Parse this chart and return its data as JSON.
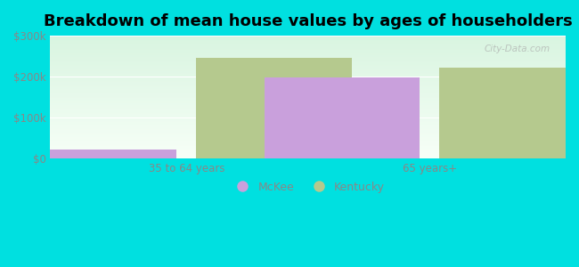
{
  "title": "Breakdown of mean house values by ages of householders",
  "categories": [
    "35 to 64 years",
    "65 years+"
  ],
  "series": {
    "McKee": [
      22000,
      198000
    ],
    "Kentucky": [
      245000,
      222000
    ]
  },
  "mckee_color": "#c9a0dc",
  "kentucky_color": "#b5c98e",
  "background_color": "#00e0e0",
  "ylim": [
    0,
    300000
  ],
  "yticks": [
    0,
    100000,
    200000,
    300000
  ],
  "ytick_labels": [
    "$0",
    "$100k",
    "$200k",
    "$300k"
  ],
  "bar_width": 0.32,
  "title_fontsize": 13,
  "tick_fontsize": 8.5,
  "legend_fontsize": 9,
  "watermark": "City-Data.com",
  "grid_color": "#ccddcc",
  "tick_color": "#888888"
}
